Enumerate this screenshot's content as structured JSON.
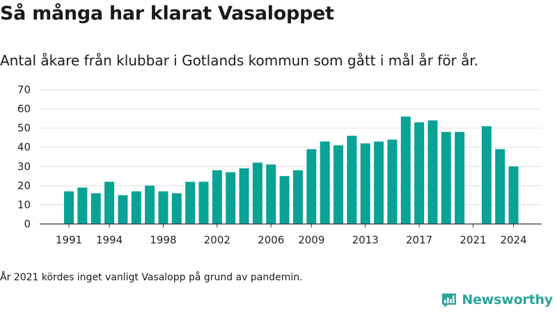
{
  "title": "Så många har klarat Vasaloppet",
  "subtitle": "Antal åkare från klubbar i Gotlands kommun som gått i mål år för år.",
  "note": "År 2021 kördes inget vanligt Vasalopp på grund av pandemin.",
  "brand": {
    "name": "Newsworthy"
  },
  "colors": {
    "bar": "#09a396",
    "grid": "#e0e0e0",
    "axis": "#333333",
    "brand": "#2aa59a"
  },
  "chart_data": {
    "type": "bar",
    "categories": [
      1991,
      1992,
      1993,
      1994,
      1995,
      1996,
      1997,
      1998,
      1999,
      2000,
      2001,
      2002,
      2003,
      2004,
      2005,
      2006,
      2007,
      2008,
      2009,
      2010,
      2011,
      2012,
      2013,
      2014,
      2015,
      2016,
      2017,
      2018,
      2019,
      2020,
      2021,
      2022,
      2023,
      2024
    ],
    "values": [
      17,
      19,
      16,
      22,
      15,
      17,
      20,
      17,
      16,
      22,
      22,
      28,
      27,
      29,
      32,
      31,
      25,
      28,
      39,
      43,
      41,
      46,
      42,
      43,
      44,
      56,
      53,
      54,
      48,
      48,
      null,
      51,
      39,
      30
    ],
    "x_tick_labels": [
      1991,
      1994,
      1998,
      2002,
      2006,
      2009,
      2013,
      2017,
      2021,
      2024
    ],
    "y_ticks": [
      0,
      10,
      20,
      30,
      40,
      50,
      60,
      70
    ],
    "ylim": [
      0,
      70
    ],
    "grid": true,
    "xlabel": "",
    "ylabel": ""
  }
}
